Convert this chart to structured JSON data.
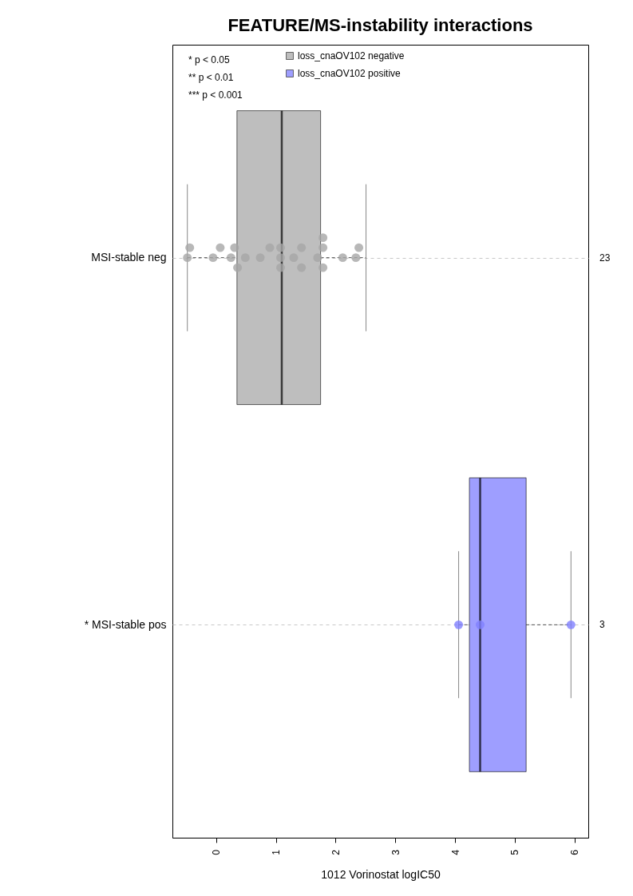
{
  "chart_data": {
    "type": "box",
    "title": "FEATURE/MS-instability interactions",
    "xlabel": "1012 Vorinostat logIC50",
    "orientation": "horizontal",
    "categories": [
      "MSI-stable neg",
      "* MSI-stable pos"
    ],
    "xlim": [
      -0.73,
      6.23
    ],
    "xticks": [
      0,
      1,
      2,
      3,
      4,
      5,
      6
    ],
    "grid": "y",
    "legend": "top left",
    "annotations": [
      "* p < 0.05",
      "** p < 0.01",
      "*** p < 0.001",
      "23",
      "3"
    ],
    "series": [
      {
        "name": "loss_cnaOV102 negative",
        "color": "#bebebe",
        "boxes": [
          {
            "low": -0.48,
            "q1": 0.35,
            "median": 1.1,
            "q3": 1.75,
            "high": 2.51
          },
          null
        ]
      },
      {
        "name": "loss_cnaOV102 positive",
        "color": "#9e9eff",
        "boxes": [
          null,
          {
            "low": 4.06,
            "q1": 4.24,
            "median": 4.42,
            "q3": 5.19,
            "high": 5.94
          }
        ]
      },
      {
        "type": "scatter",
        "color": "#a6a6a6",
        "x": [
          "MSI-stable neg",
          "MSI-stable neg",
          "MSI-stable neg",
          "MSI-stable neg",
          "MSI-stable neg",
          "MSI-stable neg",
          "MSI-stable neg",
          "MSI-stable neg",
          "MSI-stable neg",
          "MSI-stable neg",
          "MSI-stable neg",
          "MSI-stable neg",
          "MSI-stable neg",
          "MSI-stable neg",
          "MSI-stable neg",
          "MSI-stable neg",
          "MSI-stable neg",
          "MSI-stable neg",
          "MSI-stable neg",
          "MSI-stable neg",
          "MSI-stable neg",
          "MSI-stable neg",
          "MSI-stable neg"
        ],
        "values": [
          -0.48,
          -0.44,
          -0.05,
          0.07,
          0.25,
          0.31,
          0.36,
          0.49,
          0.74,
          0.9,
          1.08,
          1.08,
          1.08,
          1.3,
          1.43,
          1.43,
          1.7,
          1.79,
          1.79,
          1.79,
          2.12,
          2.34,
          2.39
        ]
      },
      {
        "type": "scatter",
        "color": "#7f7fff",
        "x": [
          "* MSI-stable pos",
          "* MSI-stable pos",
          "* MSI-stable pos"
        ],
        "values": [
          4.06,
          4.42,
          5.94
        ]
      }
    ]
  }
}
